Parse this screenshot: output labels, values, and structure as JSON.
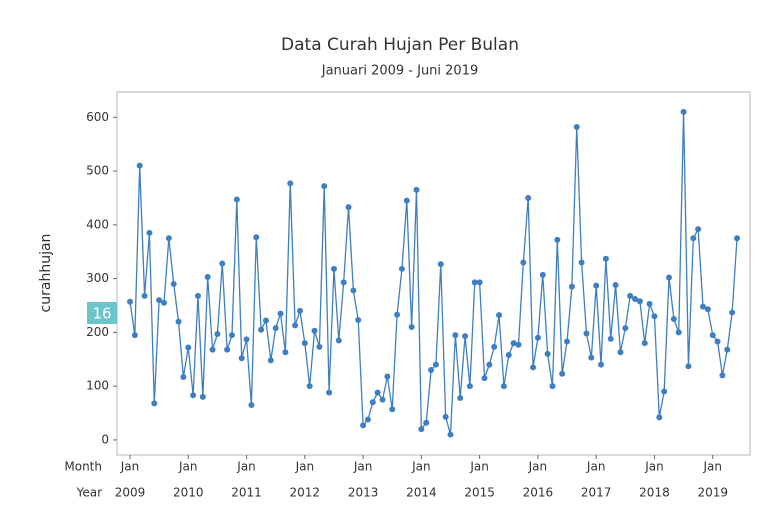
{
  "chart_data": {
    "type": "line",
    "title": "Data Curah Hujan Per Bulan",
    "subtitle": "Januari 2009 - Juni 2019",
    "y_label": "curahhujan",
    "x_row_labels": [
      "Month",
      "Year"
    ],
    "annotation": "16",
    "categories": [
      "Jan",
      null,
      null,
      null,
      null,
      null,
      null,
      null,
      null,
      null,
      null,
      null,
      "Jan",
      null,
      null,
      null,
      null,
      null,
      null,
      null,
      null,
      null,
      null,
      null,
      "Jan",
      null,
      null,
      null,
      null,
      null,
      null,
      null,
      null,
      null,
      null,
      null,
      "Jan",
      null,
      null,
      null,
      null,
      null,
      null,
      null,
      null,
      null,
      null,
      null,
      "Jan",
      null,
      null,
      null,
      null,
      null,
      null,
      null,
      null,
      null,
      null,
      null,
      "Jan",
      null,
      null,
      null,
      null,
      null,
      null,
      null,
      null,
      null,
      null,
      null,
      "Jan",
      null,
      null,
      null,
      null,
      null,
      null,
      null,
      null,
      null,
      null,
      null,
      "Jan",
      null,
      null,
      null,
      null,
      null,
      null,
      null,
      null,
      null,
      null,
      null,
      "Jan",
      null,
      null,
      null,
      null,
      null,
      null,
      null,
      null,
      null,
      null,
      null,
      "Jan",
      null,
      null,
      null,
      null,
      null,
      null,
      null,
      null,
      null,
      null,
      null,
      "Jan",
      null,
      null,
      null,
      null,
      null
    ],
    "years": [
      "2009",
      "2010",
      "2011",
      "2012",
      "2013",
      "2014",
      "2015",
      "2016",
      "2017",
      "2018",
      "2019"
    ],
    "series": [
      {
        "name": "curahhujan",
        "color": "#3f7fc0",
        "values": [
          257,
          195,
          510,
          268,
          385,
          68,
          260,
          255,
          375,
          290,
          220,
          117,
          172,
          83,
          268,
          80,
          303,
          168,
          197,
          328,
          168,
          195,
          447,
          152,
          187,
          65,
          377,
          205,
          222,
          148,
          208,
          235,
          163,
          477,
          213,
          240,
          180,
          100,
          203,
          173,
          472,
          88,
          318,
          185,
          293,
          433,
          278,
          223,
          27,
          38,
          70,
          88,
          75,
          118,
          57,
          233,
          318,
          445,
          210,
          465,
          20,
          32,
          130,
          140,
          327,
          43,
          10,
          195,
          78,
          193,
          100,
          293,
          293,
          115,
          140,
          173,
          232,
          100,
          158,
          180,
          177,
          330,
          450,
          135,
          190,
          307,
          160,
          100,
          372,
          123,
          183,
          285,
          582,
          330,
          198,
          153,
          287,
          140,
          337,
          188,
          288,
          163,
          208,
          268,
          262,
          258,
          180,
          253,
          230,
          42,
          90,
          302,
          225,
          200,
          610,
          137,
          375,
          392,
          248,
          243,
          195,
          183,
          120,
          168,
          237,
          375
        ]
      }
    ],
    "ylim": [
      -28,
      647
    ],
    "yticks": [
      0,
      100,
      200,
      300,
      400,
      500,
      600
    ],
    "grid": false
  }
}
